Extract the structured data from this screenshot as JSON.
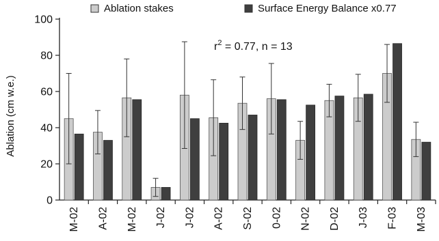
{
  "chart_data": {
    "type": "bar",
    "title": "",
    "xlabel": "",
    "ylabel": "Ablation (cm w.e.)",
    "ylim": [
      0,
      100
    ],
    "yticks": [
      0,
      20,
      40,
      60,
      80,
      100
    ],
    "grid": false,
    "legend_position": "top",
    "annotation": {
      "text_prefix": "r",
      "superscript": "2",
      "text_suffix": " = 0.77, n = 13"
    },
    "categories": [
      "M-02",
      "A-02",
      "M-02",
      "J-02",
      "J-02",
      "A-02",
      "S-02",
      "0-02",
      "N-02",
      "D-02",
      "J-03",
      "F-03",
      "M-03"
    ],
    "series": [
      {
        "name": "Ablation stakes",
        "color": "#cccccc",
        "values": [
          45,
          37.5,
          56.5,
          7,
          58,
          45.5,
          53.5,
          56,
          33,
          55,
          56.5,
          70,
          33.5
        ],
        "error": [
          25,
          12,
          21.5,
          5,
          29.5,
          21,
          14.5,
          19.5,
          10.5,
          9,
          13,
          16,
          9.5
        ]
      },
      {
        "name": "Surface Energy Balance x0.77",
        "color": "#3f3f3f",
        "values": [
          36.5,
          33,
          55.5,
          7,
          45,
          42.5,
          47,
          55.5,
          52.5,
          57.5,
          58.5,
          86.5,
          32
        ]
      }
    ]
  }
}
